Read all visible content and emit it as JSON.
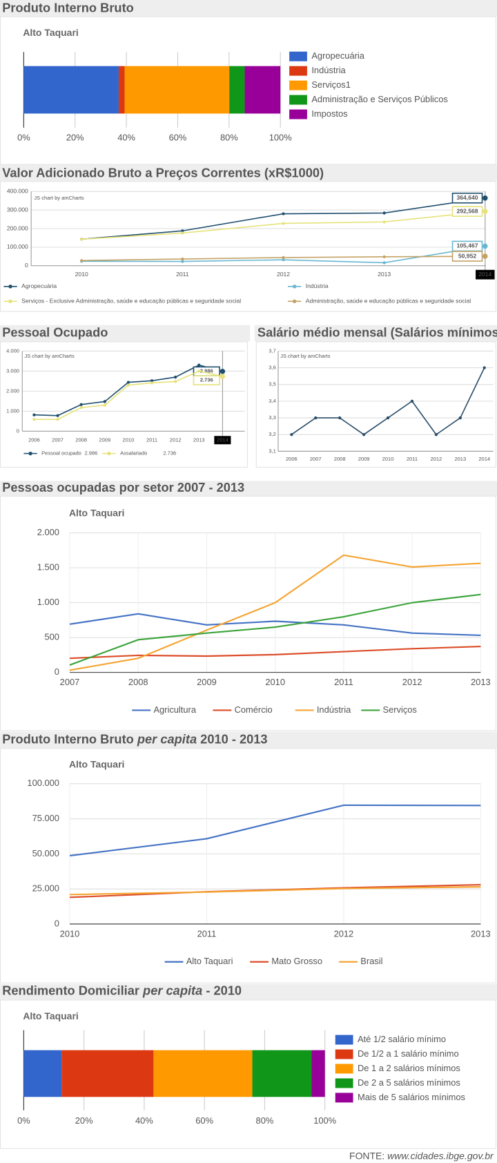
{
  "chart_data": [
    {
      "type": "bar",
      "orientation": "horizontal",
      "stacked": true,
      "title": "Produto Interno Bruto",
      "subtitle": "Alto Taquari",
      "categories": [
        null
      ],
      "series": [
        {
          "name": "Agropecuária",
          "color": "#3366cc",
          "values": [
            37.0
          ]
        },
        {
          "name": "Indústria",
          "color": "#dc3912",
          "values": [
            2.3
          ]
        },
        {
          "name": "Serviços1",
          "color": "#ff9900",
          "values": [
            40.8
          ]
        },
        {
          "name": "Administração e Serviços Públicos",
          "color": "#109618",
          "values": [
            6.0
          ]
        },
        {
          "name": "Impostos",
          "color": "#990099",
          "values": [
            13.9
          ]
        }
      ],
      "xlim": [
        0,
        100
      ],
      "xticks": [
        {
          "value": 0,
          "label": "0%"
        },
        {
          "value": 20,
          "label": "20%"
        },
        {
          "value": 40,
          "label": "40%"
        },
        {
          "value": 60,
          "label": "60%"
        },
        {
          "value": 80,
          "label": "80%"
        },
        {
          "value": 100,
          "label": "100%"
        }
      ],
      "grid": true
    },
    {
      "type": "line",
      "title": "Valor Adicionado Bruto a Preços Correntes (xR$1000)",
      "annotation": "JS chart by amCharts",
      "categories": [
        "2010",
        "2011",
        "2012",
        "2013",
        "2014"
      ],
      "series": [
        {
          "name": "Agropecuária",
          "color": "#1f4e6e",
          "values": [
            143000,
            188000,
            280000,
            284000,
            364640
          ],
          "value_labels": [
            null,
            null,
            null,
            null,
            "364,640"
          ]
        },
        {
          "name": "Indústria",
          "color": "#67b7d1",
          "values": [
            24000,
            23000,
            32000,
            16000,
            105467
          ],
          "value_labels": [
            null,
            null,
            null,
            null,
            "105,467"
          ]
        },
        {
          "name": "Serviços - Exclusive Administração, saúde e educação públicas e seguridade social",
          "color": "#e6e27a",
          "values": [
            143000,
            176000,
            228000,
            236000,
            292568
          ],
          "value_labels": [
            null,
            null,
            null,
            null,
            "292,568"
          ]
        },
        {
          "name": "Administração, saúde e educação públicas e seguridade social",
          "color": "#c4a265",
          "values": [
            28000,
            36000,
            44000,
            48000,
            50952
          ],
          "value_labels": [
            null,
            null,
            null,
            null,
            "50,952"
          ]
        }
      ],
      "ylim": [
        0,
        400000
      ],
      "yticks": [
        0,
        {
          "value": 100000,
          "label": "100.000"
        },
        {
          "value": 200000,
          "label": "200.000"
        },
        {
          "value": 300000,
          "label": "300.000"
        },
        {
          "value": 400000,
          "label": "400.000"
        }
      ],
      "grid": true
    },
    {
      "type": "line",
      "title": "Pessoal Ocupado",
      "annotation": "JS chart by amCharts",
      "categories": [
        "2006",
        "2007",
        "2008",
        "2009",
        "2010",
        "2011",
        "2012",
        "2013",
        "2014"
      ],
      "series": [
        {
          "name": "Pessoal ocupado",
          "color": "#1f4e6e",
          "values": [
            815,
            780,
            1330,
            1480,
            2440,
            2520,
            2700,
            3300,
            2986
          ],
          "value_labels": [
            null,
            null,
            null,
            null,
            null,
            null,
            null,
            null,
            "2.986"
          ]
        },
        {
          "name": "Assalariado",
          "color": "#e6e27a",
          "values": [
            590,
            590,
            1180,
            1300,
            2300,
            2410,
            2480,
            3000,
            2736
          ],
          "value_labels": [
            null,
            null,
            null,
            null,
            null,
            null,
            null,
            null,
            "2.736"
          ]
        }
      ],
      "ylim": [
        0,
        4000
      ],
      "yticks": [
        0,
        {
          "value": 1000,
          "label": "1.000"
        },
        {
          "value": 2000,
          "label": "2.000"
        },
        {
          "value": 3000,
          "label": "3.000"
        },
        {
          "value": 4000,
          "label": "4.000"
        }
      ],
      "grid": true
    },
    {
      "type": "line",
      "title": "Salário médio mensal (Salários mínimos)",
      "annotation": "JS chart by amCharts",
      "categories": [
        "2006",
        "2007",
        "2008",
        "2009",
        "2010",
        "2011",
        "2012",
        "2013",
        "2014"
      ],
      "color": "#2a4d69",
      "values": [
        3.2,
        3.3,
        3.3,
        3.2,
        3.3,
        3.4,
        3.2,
        3.3,
        3.6
      ],
      "ylim": [
        3.1,
        3.7
      ],
      "yticks": [
        {
          "value": 3.1,
          "label": "3,1"
        },
        {
          "value": 3.2,
          "label": "3,2"
        },
        {
          "value": 3.3,
          "label": "3,3"
        },
        {
          "value": 3.4,
          "label": "3,4"
        },
        {
          "value": 3.5,
          "label": "3,5"
        },
        {
          "value": 3.6,
          "label": "3,6"
        },
        {
          "value": 3.7,
          "label": "3,7"
        }
      ],
      "grid": true
    },
    {
      "type": "line",
      "title": "Pessoas ocupadas por setor 2007 - 2013",
      "subtitle": "Alto Taquari",
      "categories": [
        "2007",
        "2008",
        "2009",
        "2010",
        "2011",
        "2012",
        "2013"
      ],
      "series": [
        {
          "name": "Agricultura",
          "color": "#4472c4",
          "values": [
            691,
            840,
            681,
            734,
            681,
            564,
            532
          ]
        },
        {
          "name": "Comércio",
          "color": "#dc4c28",
          "values": [
            202,
            245,
            234,
            255,
            298,
            340,
            372
          ]
        },
        {
          "name": "Indústria",
          "color": "#f5a431",
          "values": [
            32,
            202,
            606,
            1000,
            1681,
            1511,
            1564
          ]
        },
        {
          "name": "Serviços",
          "color": "#3ca33c",
          "values": [
            106,
            468,
            564,
            649,
            798,
            1000,
            1117
          ]
        }
      ],
      "ylim": [
        0,
        2000
      ],
      "yticks": [
        0,
        500,
        {
          "value": 1000,
          "label": "1.000"
        },
        {
          "value": 1500,
          "label": "1.500"
        },
        {
          "value": 2000,
          "label": "2.000"
        }
      ],
      "grid": true
    },
    {
      "type": "line",
      "title": [
        "Produto Interno Bruto ",
        "per capita",
        " 2010 - 2013"
      ],
      "subtitle": "Alto Taquari",
      "categories": [
        "2010",
        "2011",
        "2012",
        "2013"
      ],
      "series": [
        {
          "name": "Alto Taquari",
          "color": "#4472c4",
          "values": [
            48700,
            60800,
            84700,
            84500
          ]
        },
        {
          "name": "Mato Grosso",
          "color": "#dc4c28",
          "values": [
            19000,
            23000,
            25800,
            28000
          ]
        },
        {
          "name": "Brasil",
          "color": "#f5a431",
          "values": [
            21000,
            22800,
            25300,
            26500
          ]
        }
      ],
      "ylim": [
        0,
        100000
      ],
      "yticks": [
        0,
        {
          "value": 25000,
          "label": "25.000"
        },
        {
          "value": 50000,
          "label": "50.000"
        },
        {
          "value": 75000,
          "label": "75.000"
        },
        {
          "value": 100000,
          "label": "100.000"
        }
      ],
      "grid": true
    },
    {
      "type": "bar",
      "orientation": "horizontal",
      "stacked": true,
      "title": [
        "Rendimento Domiciliar ",
        "per capita",
        " - 2010"
      ],
      "subtitle": "Alto Taquari",
      "categories": [
        null
      ],
      "series": [
        {
          "name": "Até 1/2 salário mínimo",
          "color": "#3366cc",
          "values": [
            12.6
          ]
        },
        {
          "name": "De 1/2 a 1 salário mínimo",
          "color": "#dc3912",
          "values": [
            30.5
          ]
        },
        {
          "name": "De 1 a 2 salários mínimos",
          "color": "#ff9900",
          "values": [
            32.8
          ]
        },
        {
          "name": "De 2 a 5 salários mínimos",
          "color": "#109618",
          "values": [
            19.7
          ]
        },
        {
          "name": "Mais de 5 salários mínimos",
          "color": "#990099",
          "values": [
            4.4
          ]
        }
      ],
      "xlim": [
        0,
        100
      ],
      "xticks": [
        {
          "value": 0,
          "label": "0%"
        },
        {
          "value": 20,
          "label": "20%"
        },
        {
          "value": 40,
          "label": "40%"
        },
        {
          "value": 60,
          "label": "60%"
        },
        {
          "value": 80,
          "label": "80%"
        },
        {
          "value": 100,
          "label": "100%"
        }
      ],
      "grid": true
    }
  ],
  "footer": {
    "label": "FONTE: ",
    "url": "www.cidades.ibge.gov.br"
  }
}
